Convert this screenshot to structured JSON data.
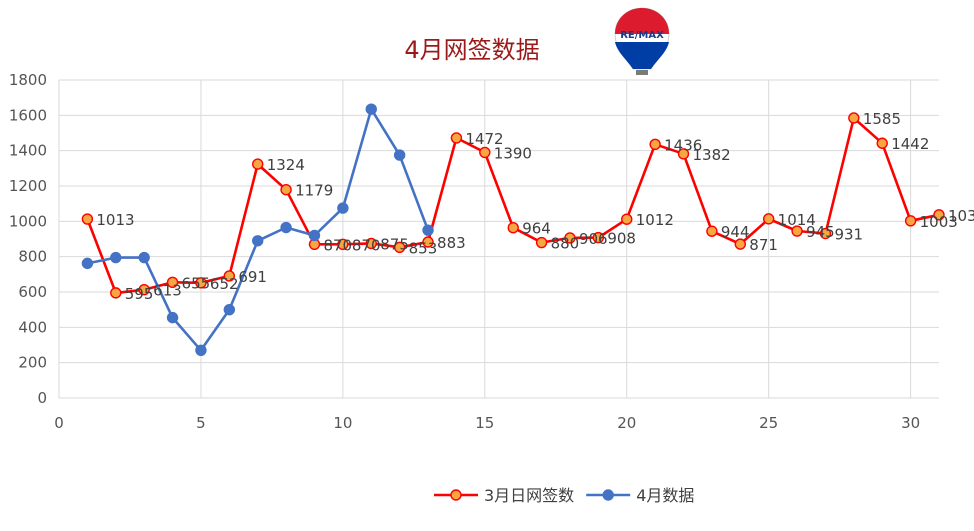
{
  "chart_data": {
    "type": "line",
    "title": "4月网签数据",
    "xlim": [
      0,
      31
    ],
    "ylim": [
      0,
      1800
    ],
    "xticks": [
      0,
      5,
      10,
      15,
      20,
      25,
      30
    ],
    "yticks": [
      0,
      200,
      400,
      600,
      800,
      1000,
      1200,
      1400,
      1600,
      1800
    ],
    "grid": true,
    "legend_position": "bottom",
    "series": [
      {
        "name": "3月日网签数",
        "color": "#ff0000",
        "marker_fill": "#f5a742",
        "x": [
          1,
          2,
          3,
          4,
          5,
          6,
          7,
          8,
          9,
          10,
          11,
          12,
          13,
          14,
          15,
          16,
          17,
          18,
          19,
          20,
          21,
          22,
          23,
          24,
          25,
          26,
          27,
          28,
          29,
          30,
          31
        ],
        "values": [
          1013,
          595,
          613,
          655,
          652,
          691,
          1324,
          1179,
          870,
          870,
          875,
          853,
          883,
          1472,
          1390,
          964,
          880,
          906,
          908,
          1012,
          1436,
          1382,
          944,
          871,
          1014,
          945,
          931,
          1585,
          1442,
          1003,
          1037
        ],
        "labels": [
          "1013",
          "595",
          "613",
          "655",
          "652",
          "691",
          "1324",
          "1179",
          "870",
          "870",
          "875",
          "853",
          "883",
          "1472",
          "1390",
          "964",
          "880",
          "906",
          "908",
          "1012",
          "1436",
          "1382",
          "944",
          "871",
          "1014",
          "945",
          "931",
          "1585",
          "1442",
          "1003",
          "1037"
        ]
      },
      {
        "name": "4月数据",
        "color": "#4472c4",
        "x": [
          1,
          2,
          3,
          4,
          5,
          6,
          7,
          8,
          9,
          10,
          11,
          12,
          13
        ],
        "values": [
          762,
          795,
          795,
          455,
          270,
          500,
          890,
          965,
          920,
          1075,
          1635,
          1375,
          950
        ]
      }
    ],
    "logo": {
      "text": "RE/MAX",
      "colors": [
        "#dc1c2e",
        "#ffffff",
        "#003da5"
      ]
    }
  }
}
